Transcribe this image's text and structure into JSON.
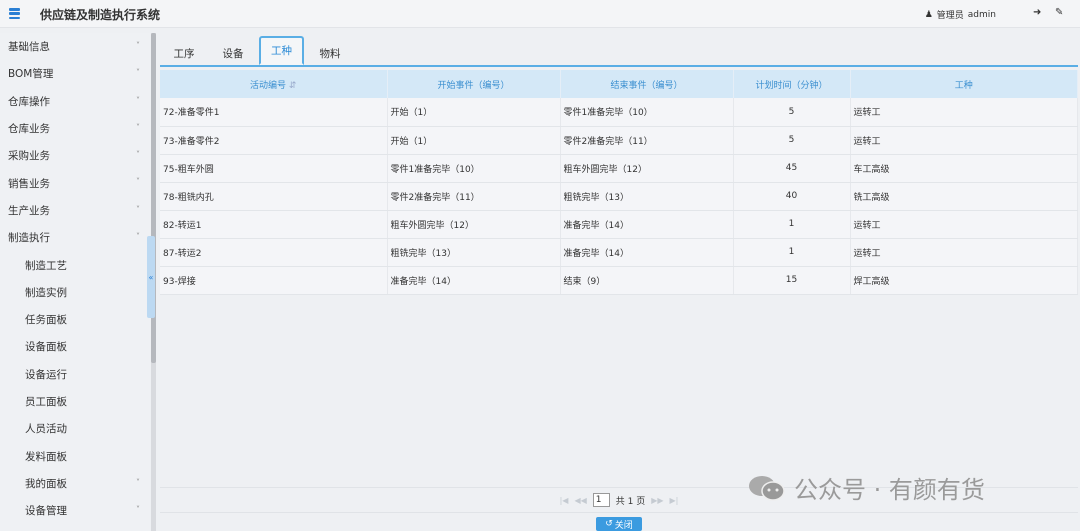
{
  "header": {
    "title": "供应链及制造执行系统",
    "role": "管理员",
    "username": "admin"
  },
  "sidebar": {
    "items": [
      {
        "label": "基础信息",
        "chevron": true
      },
      {
        "label": "BOM管理",
        "chevron": true
      },
      {
        "label": "仓库操作",
        "chevron": true
      },
      {
        "label": "仓库业务",
        "chevron": true
      },
      {
        "label": "采购业务",
        "chevron": true
      },
      {
        "label": "销售业务",
        "chevron": true
      },
      {
        "label": "生产业务",
        "chevron": true
      },
      {
        "label": "制造执行",
        "chevron": true,
        "expanded": true
      },
      {
        "label": "制造工艺",
        "sub": true
      },
      {
        "label": "制造实例",
        "sub": true
      },
      {
        "label": "任务面板",
        "sub": true
      },
      {
        "label": "设备面板",
        "sub": true
      },
      {
        "label": "设备运行",
        "sub": true
      },
      {
        "label": "员工面板",
        "sub": true
      },
      {
        "label": "人员活动",
        "sub": true
      },
      {
        "label": "发料面板",
        "sub": true
      },
      {
        "label": "我的面板",
        "sub": true,
        "chevron": true
      },
      {
        "label": "设备管理",
        "sub": true,
        "chevron": true
      }
    ]
  },
  "tabs": [
    {
      "label": "工序"
    },
    {
      "label": "设备"
    },
    {
      "label": "工种",
      "active": true
    },
    {
      "label": "物料"
    }
  ],
  "table": {
    "headers": [
      "活动编号",
      "开始事件（编号）",
      "结束事件（编号）",
      "计划时间（分钟）",
      "工种"
    ],
    "rows": [
      [
        "72-准备零件1",
        "开始（1）",
        "零件1准备完毕（10）",
        "5",
        "运转工"
      ],
      [
        "73-准备零件2",
        "开始（1）",
        "零件2准备完毕（11）",
        "5",
        "运转工"
      ],
      [
        "75-粗车外圆",
        "零件1准备完毕（10）",
        "粗车外圆完毕（12）",
        "45",
        "车工高级"
      ],
      [
        "78-粗铣内孔",
        "零件2准备完毕（11）",
        "粗铣完毕（13）",
        "40",
        "铣工高级"
      ],
      [
        "82-转运1",
        "粗车外圆完毕（12）",
        "准备完毕（14）",
        "1",
        "运转工"
      ],
      [
        "87-转运2",
        "粗铣完毕（13）",
        "准备完毕（14）",
        "1",
        "运转工"
      ],
      [
        "93-焊接",
        "准备完毕（14）",
        "结束（9）",
        "15",
        "焊工高级"
      ]
    ]
  },
  "pager": {
    "page": "1",
    "total_label": "共 1 页"
  },
  "close_label": "关闭",
  "watermark": "公众号 · 有颜有货",
  "colors": {
    "accent": "#2a8ad6",
    "header_row": "#d4e8f7",
    "button": "#3b9be0"
  }
}
